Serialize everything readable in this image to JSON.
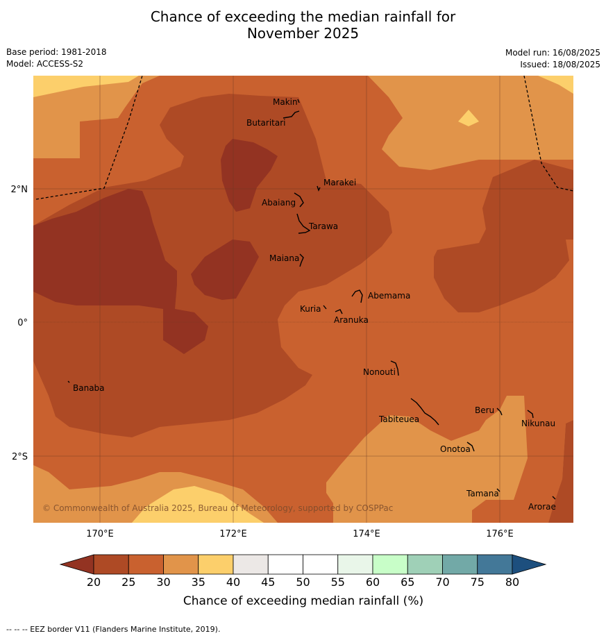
{
  "title_line1": "Chance of exceeding the median rainfall for",
  "title_line2": "November 2025",
  "meta": {
    "base_period": "Base period: 1981-2018",
    "model": "Model: ACCESS-S2",
    "model_run": "Model run: 16/08/2025",
    "issued": "Issued: 18/08/2025"
  },
  "axes": {
    "lat_labels": [
      "2°N",
      "0°",
      "2°S"
    ],
    "lon_labels": [
      "170°E",
      "172°E",
      "174°E",
      "176°E"
    ]
  },
  "places": [
    {
      "name": "Makin",
      "lon": 172.98,
      "lat": 3.28
    },
    {
      "name": "Butaritari",
      "lon": 172.8,
      "lat": 3.02
    },
    {
      "name": "Marakei",
      "lon": 173.26,
      "lat": 2.0
    },
    {
      "name": "Abaiang",
      "lon": 172.94,
      "lat": 1.78
    },
    {
      "name": "Tarawa",
      "lon": 173.05,
      "lat": 1.4
    },
    {
      "name": "Maiana",
      "lon": 172.98,
      "lat": 0.92
    },
    {
      "name": "Abemama",
      "lon": 173.86,
      "lat": 0.4
    },
    {
      "name": "Kuria",
      "lon": 173.4,
      "lat": 0.23
    },
    {
      "name": "Aranuka",
      "lon": 173.62,
      "lat": 0.16
    },
    {
      "name": "Banaba",
      "lon": 169.53,
      "lat": -0.87
    },
    {
      "name": "Nonouti",
      "lon": 174.43,
      "lat": -0.67
    },
    {
      "name": "Tabiteuea",
      "lon": 174.8,
      "lat": -1.3
    },
    {
      "name": "Beru",
      "lon": 175.98,
      "lat": -1.33
    },
    {
      "name": "Nikunau",
      "lon": 176.45,
      "lat": -1.37
    },
    {
      "name": "Onotoa",
      "lon": 175.56,
      "lat": -1.84
    },
    {
      "name": "Tamana",
      "lon": 175.97,
      "lat": -2.5
    },
    {
      "name": "Arorae",
      "lon": 176.82,
      "lat": -2.65
    }
  ],
  "copyright": "© Commonwealth of Australia 2025, Bureau of Meteorology, supported by COSPPac",
  "colorbar": {
    "ticks": [
      "20",
      "25",
      "30",
      "35",
      "40",
      "45",
      "50",
      "55",
      "60",
      "65",
      "70",
      "75",
      "80"
    ],
    "colors": [
      "#ae4a25",
      "#c9612f",
      "#e1944a",
      "#fccf6b",
      "#ece8e6",
      "#ffffff",
      "#ffffff",
      "#e9f6e9",
      "#c8fec8",
      "#9fd0b7",
      "#72a9a7",
      "#437898"
    ],
    "under_color": "#933322",
    "over_color": "#1d4f7e",
    "label": "Chance of exceeding median rainfall (%)"
  },
  "footnote": "--  --  -- EEZ border V11 (Flanders Marine Institute, 2019).",
  "legend_colors": {
    "lt20": "#933322",
    "c20_25": "#ae4a25",
    "c25_30": "#c9612f",
    "c30_35": "#e1944a",
    "c35_40": "#fccf6b"
  }
}
